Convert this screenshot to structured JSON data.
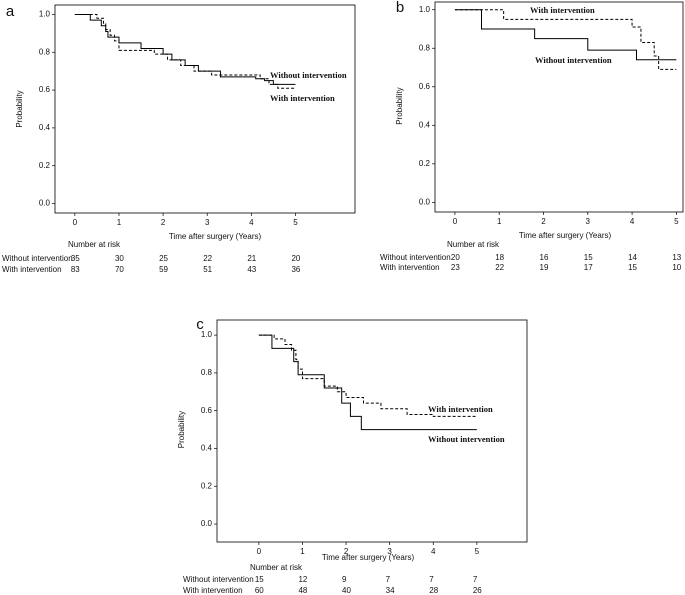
{
  "chart_data": [
    {
      "type": "step",
      "label": "a",
      "xlabel": "Time after surgery (Years)",
      "ylabel": "Probability",
      "xlim": [
        -0.45,
        6.35
      ],
      "ylim": [
        -0.05,
        1.05
      ],
      "xticks": [
        0,
        1,
        2,
        3,
        4,
        5
      ],
      "yticks": [
        {
          "value": 0,
          "label": "0.0"
        },
        0.2,
        0.4,
        0.6,
        0.8,
        {
          "value": 1,
          "label": "1.0"
        }
      ],
      "at_risk_title": "Number at risk",
      "series": [
        {
          "name": "Without intervention",
          "color": "#000000",
          "line_style": "solid",
          "x": [
            0,
            0.35,
            0.6,
            0.7,
            0.75,
            1.0,
            1.5,
            2.0,
            2.2,
            2.5,
            2.8,
            3.3,
            4.1,
            4.3,
            4.5,
            5
          ],
          "values": [
            1.0,
            0.97,
            0.94,
            0.91,
            0.88,
            0.85,
            0.82,
            0.79,
            0.76,
            0.73,
            0.7,
            0.67,
            0.66,
            0.65,
            0.63,
            0.63
          ],
          "at_risk": [
            35,
            30,
            25,
            22,
            21,
            20
          ]
        },
        {
          "name": "With intervention",
          "color": "#000000",
          "line_style": "dashed",
          "x": [
            0,
            0.5,
            0.65,
            0.7,
            0.8,
            0.9,
            1.0,
            1.8,
            2.1,
            2.4,
            2.7,
            3.1,
            4.2,
            4.4,
            4.6,
            5
          ],
          "values": [
            1.0,
            0.98,
            0.95,
            0.92,
            0.89,
            0.86,
            0.81,
            0.79,
            0.76,
            0.73,
            0.7,
            0.68,
            0.66,
            0.63,
            0.61,
            0.61
          ],
          "at_risk": [
            83,
            70,
            59,
            51,
            43,
            36
          ]
        }
      ]
    },
    {
      "type": "step",
      "label": "b",
      "xlabel": "Time after surgery (Years)",
      "ylabel": "Probability",
      "xlim": [
        -0.45,
        5.15
      ],
      "ylim": [
        -0.05,
        1.04
      ],
      "xticks": [
        0,
        1,
        2,
        3,
        4,
        5
      ],
      "yticks": [
        {
          "value": 0,
          "label": "0.0"
        },
        0.2,
        0.4,
        0.6,
        0.8,
        {
          "value": 1,
          "label": "1.0"
        }
      ],
      "at_risk_title": "Number at risk",
      "series": [
        {
          "name": "Without intervention",
          "color": "#000000",
          "line_style": "solid",
          "x": [
            0,
            0.6,
            1.8,
            3.0,
            4.1,
            5
          ],
          "values": [
            1.0,
            0.9,
            0.85,
            0.79,
            0.74,
            0.74
          ],
          "at_risk": [
            20,
            18,
            16,
            15,
            14,
            13
          ]
        },
        {
          "name": "With intervention",
          "color": "#000000",
          "line_style": "dashed",
          "x": [
            0,
            1.1,
            4.0,
            4.2,
            4.5,
            4.6,
            5
          ],
          "values": [
            1.0,
            0.95,
            0.91,
            0.83,
            0.76,
            0.69,
            0.69
          ],
          "at_risk": [
            23,
            22,
            19,
            17,
            15,
            10
          ]
        }
      ]
    },
    {
      "type": "step",
      "label": "c",
      "xlabel": "Time after surgery (Years)",
      "ylabel": "Probability",
      "xlim": [
        -0.96,
        6.15
      ],
      "ylim": [
        -0.095,
        1.08
      ],
      "xticks": [
        0,
        1,
        2,
        3,
        4,
        5
      ],
      "yticks": [
        {
          "value": 0,
          "label": "0.0"
        },
        0.2,
        0.4,
        0.6,
        0.8,
        {
          "value": 1,
          "label": "1.0"
        }
      ],
      "at_risk_title": "Number at risk",
      "series": [
        {
          "name": "Without intervention",
          "color": "#000000",
          "line_style": "solid",
          "x": [
            0,
            0.3,
            0.8,
            0.9,
            1.5,
            1.9,
            2.1,
            2.35,
            5
          ],
          "values": [
            1.0,
            0.93,
            0.86,
            0.79,
            0.72,
            0.64,
            0.57,
            0.5,
            0.5
          ],
          "at_risk": [
            15,
            12,
            9,
            7,
            7,
            7
          ]
        },
        {
          "name": "With intervention",
          "color": "#000000",
          "line_style": "dashed",
          "x": [
            0,
            0.35,
            0.6,
            0.75,
            0.85,
            0.9,
            1.0,
            1.5,
            1.8,
            2.0,
            2.4,
            2.8,
            3.4,
            4.0,
            5
          ],
          "values": [
            1.0,
            0.98,
            0.95,
            0.92,
            0.87,
            0.82,
            0.77,
            0.73,
            0.7,
            0.67,
            0.64,
            0.61,
            0.58,
            0.57,
            0.57
          ],
          "at_risk": [
            60,
            48,
            40,
            34,
            28,
            26
          ]
        }
      ]
    }
  ]
}
